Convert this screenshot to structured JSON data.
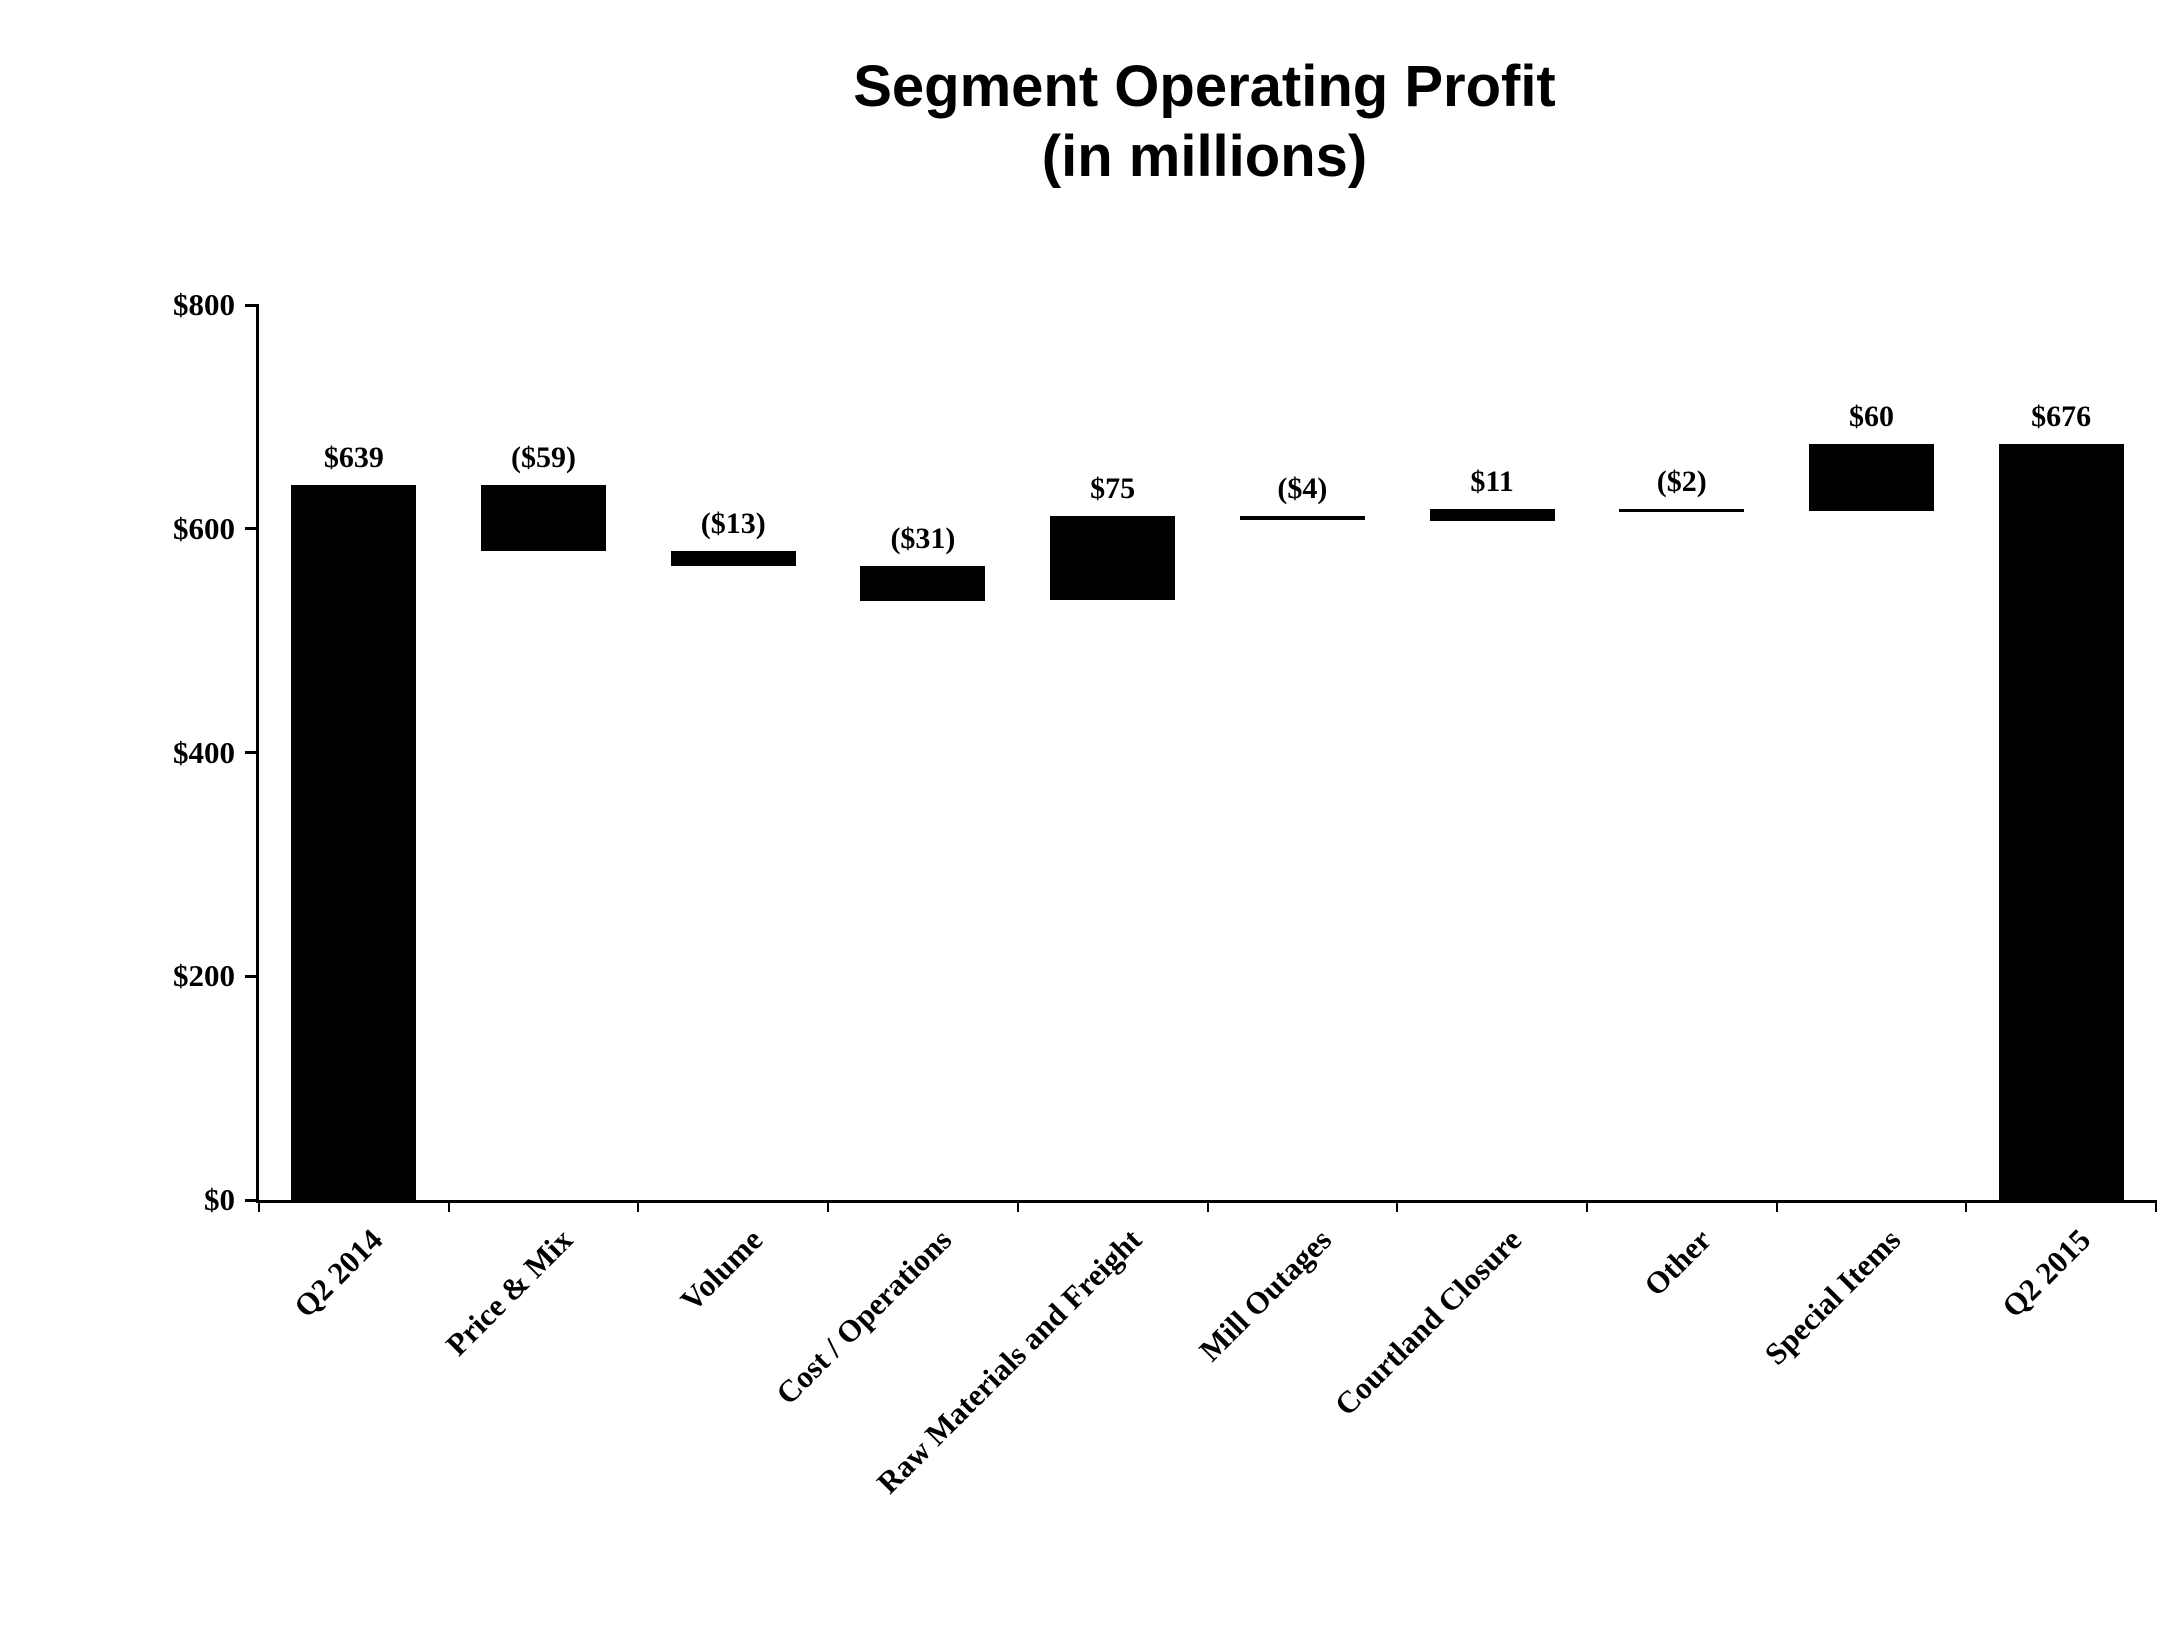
{
  "title": {
    "line1": "Segment Operating Profit",
    "line2": "(in millions)"
  },
  "chart_data": {
    "type": "bar",
    "subtype": "waterfall",
    "title": "Segment Operating Profit (in millions)",
    "xlabel": "",
    "ylabel": "",
    "categories": [
      "Q2 2014",
      "Price & Mix",
      "Volume",
      "Cost / Operations",
      "Raw Materials and Freight",
      "Mill Outages",
      "Courtland Closure",
      "Other",
      "Special Items",
      "Q2 2015"
    ],
    "values": [
      639,
      -59,
      -13,
      -31,
      75,
      -4,
      11,
      -2,
      60,
      676
    ],
    "labels": [
      "$639",
      "($59)",
      "($13)",
      "($31)",
      "$75",
      "($4)",
      "$11",
      "($2)",
      "$60",
      "$676"
    ],
    "bar_ranges": [
      [
        0,
        639
      ],
      [
        580,
        639
      ],
      [
        567,
        580
      ],
      [
        536,
        567
      ],
      [
        536,
        611
      ],
      [
        607,
        611
      ],
      [
        607,
        618
      ],
      [
        616,
        618
      ],
      [
        616,
        676
      ],
      [
        0,
        676
      ]
    ],
    "bar_color": "#000000",
    "ylim": [
      0,
      800
    ],
    "yticks": [
      0,
      200,
      400,
      600,
      800
    ],
    "ytick_labels": [
      "$0",
      "$200",
      "$400",
      "$600",
      "$800"
    ],
    "grid": false,
    "legend": null
  }
}
